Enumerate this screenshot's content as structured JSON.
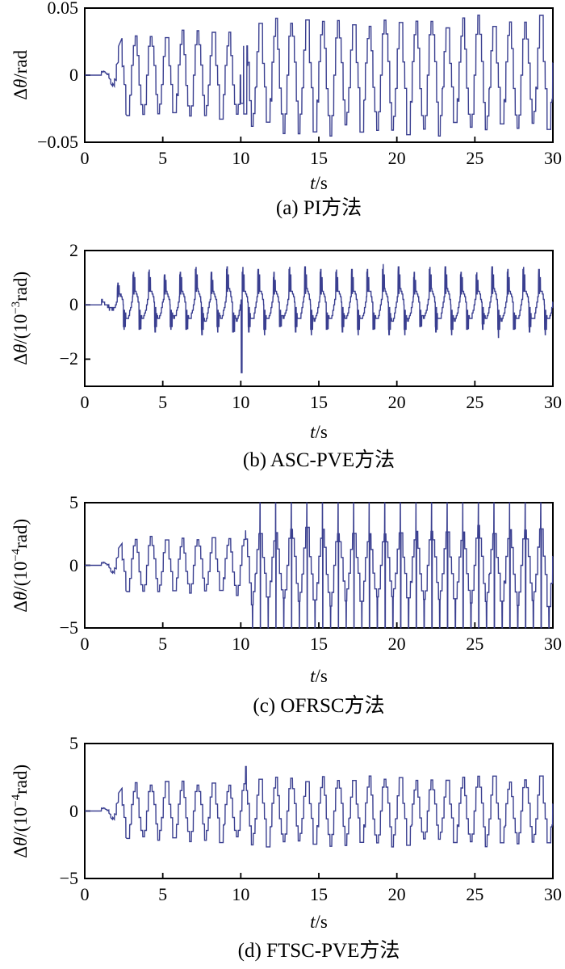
{
  "figure": {
    "background": "#ffffff",
    "axis_color": "#000000",
    "line_color": "#3a3f90",
    "description": "Four stacked time-response plots comparing angle tracking error of four control methods"
  },
  "chart_data": [
    {
      "type": "line",
      "caption": "(a) PI方法",
      "xlabel": {
        "sym": "t",
        "rest": "/s"
      },
      "ylabel": {
        "d": "Δ",
        "theta": "θ",
        "mid": "/rad",
        "sup": "",
        "post": ""
      },
      "xlim": [
        0,
        30
      ],
      "ylim": [
        -0.05,
        0.05
      ],
      "grid": false,
      "legend": null,
      "xticks": [
        {
          "v": 0,
          "label": "0"
        },
        {
          "v": 5,
          "label": "5"
        },
        {
          "v": 10,
          "label": "10"
        },
        {
          "v": 15,
          "label": "15"
        },
        {
          "v": 20,
          "label": "20"
        },
        {
          "v": 25,
          "label": "25"
        },
        {
          "v": 30,
          "label": "30"
        }
      ],
      "yticks": [
        {
          "v": 0.05,
          "label": "0.05"
        },
        {
          "v": 0,
          "label": "0"
        },
        {
          "v": -0.05,
          "label": "−0.05"
        }
      ],
      "series": [
        {
          "name": "Δθ error",
          "color": "#3a3f90",
          "waveform": {
            "style": "stepped",
            "freq": 1,
            "t_on": 0.95,
            "hold": 0.12,
            "quant": 0.25,
            "amp_pre": 0.029,
            "amp_post": 0.038,
            "t_switch": 10.45,
            "spikes": [
              {
                "t": 10.08,
                "v": -0.021,
                "w": 0.18
              },
              {
                "t": 10.28,
                "v": -0.029,
                "w": 0.2
              }
            ]
          }
        }
      ]
    },
    {
      "type": "line",
      "caption": "(b) ASC-PVE方法",
      "xlabel": {
        "sym": "t",
        "rest": "/s"
      },
      "ylabel": {
        "d": "Δ",
        "theta": "θ",
        "mid": "/(10",
        "sup": "−3",
        "post": "rad)"
      },
      "xlim": [
        0,
        30
      ],
      "ylim": [
        -3,
        2
      ],
      "grid": false,
      "legend": null,
      "xticks": [
        {
          "v": 0,
          "label": "0"
        },
        {
          "v": 5,
          "label": "5"
        },
        {
          "v": 10,
          "label": "10"
        },
        {
          "v": 15,
          "label": "15"
        },
        {
          "v": 20,
          "label": "20"
        },
        {
          "v": 25,
          "label": "25"
        },
        {
          "v": 30,
          "label": "30"
        }
      ],
      "yticks": [
        {
          "v": 2,
          "label": "2"
        },
        {
          "v": 0,
          "label": "0"
        },
        {
          "v": -2,
          "label": "−2"
        }
      ],
      "series": [
        {
          "name": "Δθ error",
          "color": "#3a3f90",
          "waveform": {
            "style": "spiky",
            "freq": 1,
            "t_on": 0.95,
            "hold": 0.06,
            "quant": 0.1,
            "base_amp": 0.52,
            "amp_pre": 1,
            "amp_post": 1,
            "t_switch": 10.2,
            "pulses": [
              {
                "f0": 0.13,
                "f1": 0.19,
                "a": 0.85
              },
              {
                "f0": 0.21,
                "f1": 0.26,
                "a": 0.5
              },
              {
                "f0": 0.52,
                "f1": 0.58,
                "a": -0.85
              },
              {
                "f0": 0.6,
                "f1": 0.65,
                "a": -0.5
              }
            ],
            "spikes": [
              {
                "t": 10.05,
                "v": -2.5,
                "w": 0.06
              }
            ]
          }
        }
      ]
    },
    {
      "type": "line",
      "caption": "(c) OFRSC方法",
      "xlabel": {
        "sym": "t",
        "rest": "/s"
      },
      "ylabel": {
        "d": "Δ",
        "theta": "θ",
        "mid": "/(10",
        "sup": "−4",
        "post": "rad)"
      },
      "xlim": [
        0,
        30
      ],
      "ylim": [
        -5,
        5
      ],
      "grid": false,
      "legend": null,
      "xticks": [
        {
          "v": 0,
          "label": "0"
        },
        {
          "v": 5,
          "label": "5"
        },
        {
          "v": 10,
          "label": "10"
        },
        {
          "v": 15,
          "label": "15"
        },
        {
          "v": 20,
          "label": "20"
        },
        {
          "v": 25,
          "label": "25"
        },
        {
          "v": 30,
          "label": "30"
        }
      ],
      "yticks": [
        {
          "v": 5,
          "label": "5"
        },
        {
          "v": 0,
          "label": "0"
        },
        {
          "v": -5,
          "label": "−5"
        }
      ],
      "series": [
        {
          "name": "Δθ error",
          "color": "#3a3f90",
          "waveform": {
            "style": "stepped",
            "freq": 1,
            "t_on": 0.95,
            "hold": 0.12,
            "quant": 0.25,
            "amp_pre": 2.0,
            "amp_post": 2.7,
            "t_switch": 10.3,
            "post_spikes": {
              "amp": 8,
              "windows": [
                [
                  0.27,
                  0.29,
                  1
                ],
                [
                  0.29,
                  0.315,
                  -1
                ],
                [
                  0.79,
                  0.815,
                  -1
                ]
              ]
            },
            "spikes": []
          }
        }
      ]
    },
    {
      "type": "line",
      "caption": "(d) FTSC-PVE方法",
      "xlabel": {
        "sym": "t",
        "rest": "/s"
      },
      "ylabel": {
        "d": "Δ",
        "theta": "θ",
        "mid": "/(10",
        "sup": "−4",
        "post": "rad)"
      },
      "xlim": [
        0,
        30
      ],
      "ylim": [
        -5,
        5
      ],
      "grid": false,
      "legend": null,
      "xticks": [
        {
          "v": 0,
          "label": "0"
        },
        {
          "v": 5,
          "label": "5"
        },
        {
          "v": 10,
          "label": "10"
        },
        {
          "v": 15,
          "label": "15"
        },
        {
          "v": 20,
          "label": "20"
        },
        {
          "v": 25,
          "label": "25"
        },
        {
          "v": 30,
          "label": "30"
        }
      ],
      "yticks": [
        {
          "v": 5,
          "label": "5"
        },
        {
          "v": 0,
          "label": "0"
        },
        {
          "v": -5,
          "label": "−5"
        }
      ],
      "series": [
        {
          "name": "Δθ error",
          "color": "#3a3f90",
          "waveform": {
            "style": "stepped",
            "freq": 1,
            "t_on": 0.95,
            "hold": 0.12,
            "quant": 0.25,
            "amp_pre": 2.0,
            "amp_post": 2.2,
            "t_switch": 10.45,
            "spikes": [
              {
                "t": 10.33,
                "v": 3.3,
                "w": 0.05
              }
            ]
          }
        }
      ]
    }
  ]
}
